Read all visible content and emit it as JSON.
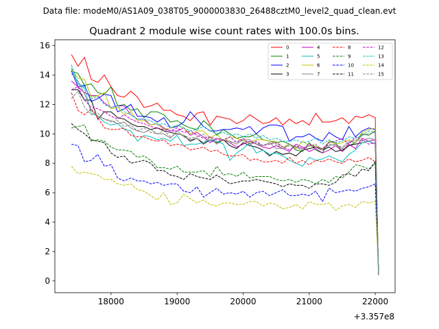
{
  "chart_data": {
    "type": "line",
    "suptitle": "Data file: modeM0/AS1A09_038T05_9000003830_26488cztM0_level2_quad_clean.evt",
    "title": "Quadrant 2 module wise count rates with 100.0s bins.",
    "xlabel": "",
    "ylabel": "",
    "offset_text": "+3.357e8",
    "xlim": [
      17150,
      22300
    ],
    "ylim": [
      -0.8,
      16.4
    ],
    "xticks": [
      18000,
      19000,
      20000,
      21000,
      22000
    ],
    "xtick_labels": [
      "18000",
      "19000",
      "20000",
      "21000",
      "22000"
    ],
    "yticks": [
      0,
      2,
      4,
      6,
      8,
      10,
      12,
      14,
      16
    ],
    "ytick_labels": [
      "0",
      "2",
      "4",
      "6",
      "8",
      "10",
      "12",
      "14",
      "16"
    ],
    "legend_position": "upper right",
    "x": [
      17400,
      17500,
      17600,
      17700,
      17800,
      17900,
      18000,
      18100,
      18200,
      18300,
      18400,
      18500,
      18600,
      18700,
      18800,
      18900,
      19000,
      19100,
      19200,
      19300,
      19400,
      19500,
      19600,
      19700,
      19800,
      19900,
      20000,
      20100,
      20200,
      20300,
      20400,
      20500,
      20600,
      20700,
      20800,
      20900,
      21000,
      21100,
      21200,
      21300,
      21400,
      21500,
      21600,
      21700,
      21800,
      21900,
      22000,
      22050
    ],
    "series": [
      {
        "name": "0",
        "color": "#ff0000",
        "dash": "solid",
        "values": [
          15.4,
          14.6,
          15.2,
          13.7,
          13.5,
          14.0,
          13.2,
          12.6,
          12.5,
          12.9,
          12.5,
          11.8,
          11.9,
          12.1,
          11.6,
          11.6,
          11.3,
          11.2,
          10.9,
          11.4,
          11.5,
          10.6,
          11.2,
          11.1,
          11.0,
          10.7,
          10.9,
          11.3,
          11.0,
          10.7,
          10.8,
          11.1,
          10.6,
          11.0,
          10.7,
          10.9,
          10.6,
          11.4,
          10.8,
          10.8,
          10.9,
          11.1,
          10.7,
          11.2,
          11.1,
          11.3,
          11.1,
          0.4
        ]
      },
      {
        "name": "1",
        "color": "#008000",
        "dash": "solid",
        "values": [
          14.3,
          14.1,
          13.3,
          13.4,
          12.8,
          12.7,
          13.2,
          11.9,
          12.0,
          11.6,
          11.7,
          11.1,
          11.5,
          11.5,
          11.3,
          10.8,
          10.9,
          10.6,
          10.4,
          10.3,
          10.9,
          10.5,
          9.9,
          10.3,
          10.0,
          9.7,
          9.8,
          9.8,
          10.0,
          9.6,
          9.5,
          9.4,
          9.5,
          9.3,
          8.9,
          8.8,
          9.4,
          8.9,
          8.7,
          9.5,
          9.4,
          8.8,
          9.2,
          9.4,
          10.0,
          9.9,
          10.2,
          0.5
        ]
      },
      {
        "name": "2",
        "color": "#0000ff",
        "dash": "solid",
        "values": [
          14.3,
          13.2,
          13.3,
          12.2,
          12.4,
          12.7,
          12.6,
          11.5,
          11.7,
          12.0,
          11.2,
          11.2,
          11.1,
          10.8,
          11.1,
          10.4,
          10.5,
          10.8,
          11.5,
          11.0,
          10.5,
          10.2,
          10.2,
          10.3,
          10.3,
          10.4,
          10.3,
          10.5,
          10.0,
          10.4,
          10.6,
          10.6,
          10.5,
          9.5,
          9.8,
          9.8,
          10.0,
          9.7,
          9.5,
          10.1,
          9.8,
          9.6,
          10.5,
          9.8,
          10.2,
          10.4,
          10.3,
          0.4
        ]
      },
      {
        "name": "3",
        "color": "#000000",
        "dash": "solid",
        "values": [
          13.0,
          13.0,
          12.3,
          12.3,
          11.0,
          11.5,
          11.5,
          11.1,
          11.0,
          10.7,
          10.5,
          10.5,
          10.3,
          10.4,
          10.2,
          10.1,
          10.0,
          9.9,
          9.5,
          9.7,
          9.3,
          9.6,
          9.4,
          9.6,
          9.2,
          9.0,
          9.4,
          9.2,
          9.1,
          8.9,
          8.5,
          8.8,
          8.6,
          8.7,
          8.5,
          8.9,
          9.0,
          9.1,
          8.9,
          9.1,
          8.8,
          8.9,
          9.2,
          9.3,
          9.4,
          9.5,
          9.3,
          0.4
        ]
      },
      {
        "name": "4",
        "color": "#bf00bf",
        "dash": "solid",
        "values": [
          13.6,
          13.2,
          12.8,
          12.6,
          12.6,
          12.1,
          11.8,
          11.9,
          11.9,
          11.3,
          11.0,
          11.0,
          10.6,
          10.7,
          10.4,
          10.2,
          10.2,
          10.4,
          9.9,
          10.1,
          9.8,
          9.4,
          9.7,
          9.6,
          9.4,
          9.1,
          9.3,
          9.5,
          9.3,
          9.1,
          9.0,
          9.2,
          9.0,
          8.8,
          9.3,
          9.1,
          8.8,
          9.0,
          8.7,
          8.9,
          9.2,
          8.8,
          9.3,
          9.0,
          9.7,
          9.5,
          9.6,
          0.4
        ]
      },
      {
        "name": "5",
        "color": "#00bfbf",
        "dash": "solid",
        "values": [
          14.5,
          13.4,
          13.1,
          11.4,
          11.2,
          10.8,
          10.6,
          10.7,
          10.3,
          10.2,
          9.5,
          9.9,
          9.8,
          9.6,
          9.7,
          9.5,
          9.9,
          9.2,
          9.3,
          9.3,
          9.4,
          9.6,
          9.5,
          9.3,
          8.2,
          8.7,
          9.0,
          9.4,
          8.7,
          8.9,
          8.6,
          8.7,
          8.5,
          8.2,
          8.0,
          7.8,
          8.4,
          8.2,
          8.3,
          8.5,
          8.3,
          8.1,
          8.6,
          8.9,
          9.4,
          9.5,
          9.3,
          0.4
        ]
      },
      {
        "name": "6",
        "color": "#bfbf00",
        "dash": "solid",
        "values": [
          14.4,
          13.8,
          13.7,
          12.5,
          12.6,
          12.8,
          11.7,
          11.8,
          11.3,
          11.5,
          10.9,
          10.9,
          10.6,
          10.7,
          10.3,
          10.4,
          10.6,
          10.4,
          10.0,
          10.2,
          10.2,
          9.7,
          10.0,
          9.5,
          9.8,
          9.7,
          9.5,
          9.4,
          9.6,
          9.6,
          9.5,
          9.5,
          9.1,
          9.3,
          9.0,
          9.5,
          9.2,
          9.2,
          8.9,
          9.5,
          9.3,
          9.4,
          9.6,
          9.4,
          10.1,
          10.3,
          10.4,
          0.4
        ]
      },
      {
        "name": "7",
        "color": "#808080",
        "dash": "solid",
        "values": [
          14.1,
          13.6,
          12.7,
          11.6,
          11.2,
          11.0,
          10.9,
          10.7,
          10.8,
          10.4,
          10.2,
          10.1,
          10.3,
          10.0,
          10.0,
          9.7,
          10.2,
          9.8,
          9.6,
          9.7,
          9.4,
          9.8,
          9.3,
          9.6,
          9.5,
          9.3,
          9.6,
          9.6,
          9.3,
          9.2,
          9.4,
          9.0,
          9.0,
          9.3,
          9.1,
          8.9,
          9.2,
          9.1,
          9.0,
          9.2,
          9.3,
          9.0,
          9.4,
          9.6,
          9.5,
          9.7,
          9.6,
          0.4
        ]
      },
      {
        "name": "8",
        "color": "#ff0000",
        "dash": "dashed",
        "values": [
          12.8,
          11.6,
          11.3,
          11.7,
          11.1,
          10.4,
          10.3,
          10.3,
          10.4,
          9.9,
          9.8,
          9.8,
          9.6,
          9.5,
          9.6,
          9.2,
          9.3,
          9.2,
          8.9,
          9.0,
          9.1,
          8.8,
          8.9,
          8.6,
          8.5,
          8.5,
          8.6,
          8.2,
          8.3,
          8.1,
          8.1,
          8.2,
          8.0,
          8.4,
          8.0,
          8.2,
          7.9,
          8.2,
          8.1,
          8.3,
          8.1,
          8.0,
          8.3,
          8.1,
          8.2,
          8.4,
          8.1,
          0.4
        ]
      },
      {
        "name": "9",
        "color": "#008000",
        "dash": "dashed",
        "values": [
          10.4,
          10.5,
          10.6,
          9.5,
          9.6,
          9.5,
          9.1,
          8.9,
          8.9,
          8.8,
          8.4,
          8.5,
          8.2,
          7.7,
          7.7,
          7.6,
          7.8,
          7.4,
          7.4,
          7.4,
          7.5,
          7.1,
          7.8,
          7.2,
          7.3,
          7.1,
          7.4,
          7.0,
          7.1,
          7.1,
          7.1,
          6.9,
          6.8,
          6.9,
          6.7,
          6.9,
          6.8,
          6.6,
          6.9,
          6.7,
          7.1,
          7.0,
          7.4,
          7.9,
          7.8,
          7.6,
          8.0,
          0.4
        ]
      },
      {
        "name": "10",
        "color": "#0000ff",
        "dash": "dashed",
        "values": [
          9.3,
          9.2,
          8.1,
          8.2,
          8.6,
          7.8,
          7.9,
          7.0,
          6.8,
          7.0,
          6.8,
          6.8,
          6.6,
          6.7,
          6.5,
          6.6,
          6.6,
          6.1,
          6.0,
          6.4,
          5.7,
          6.0,
          6.3,
          5.9,
          6.0,
          5.9,
          6.1,
          5.7,
          6.0,
          6.1,
          5.8,
          6.0,
          6.2,
          5.8,
          5.8,
          5.9,
          5.8,
          6.1,
          5.4,
          6.3,
          6.0,
          6.1,
          6.2,
          6.1,
          6.3,
          6.4,
          6.6,
          0.4
        ]
      },
      {
        "name": "11",
        "color": "#000000",
        "dash": "dashed",
        "values": [
          10.7,
          10.3,
          10.0,
          9.6,
          9.5,
          9.4,
          8.7,
          8.4,
          8.5,
          8.0,
          8.1,
          8.2,
          8.0,
          7.5,
          7.5,
          7.2,
          7.1,
          6.9,
          7.3,
          7.1,
          7.0,
          6.9,
          7.2,
          6.9,
          6.6,
          6.7,
          6.8,
          6.8,
          6.9,
          6.8,
          6.7,
          6.6,
          6.4,
          6.6,
          6.5,
          6.5,
          6.3,
          6.6,
          6.6,
          6.5,
          6.7,
          7.2,
          7.3,
          7.1,
          7.6,
          7.5,
          8.1,
          0.4
        ]
      },
      {
        "name": "12",
        "color": "#bf00bf",
        "dash": "dashed",
        "values": [
          13.0,
          13.2,
          12.3,
          11.8,
          11.7,
          11.5,
          11.2,
          11.0,
          11.3,
          11.0,
          10.8,
          10.7,
          10.5,
          10.4,
          10.3,
          10.2,
          10.4,
          10.1,
          10.2,
          9.9,
          9.7,
          9.8,
          9.6,
          9.6,
          9.8,
          9.4,
          9.7,
          9.3,
          9.5,
          9.2,
          9.3,
          9.4,
          9.1,
          8.9,
          9.2,
          9.0,
          9.3,
          9.1,
          9.0,
          9.4,
          9.5,
          9.7,
          9.3,
          9.8,
          9.6,
          9.3,
          9.4,
          0.4
        ]
      },
      {
        "name": "13",
        "color": "#00bfbf",
        "dash": "dashed",
        "values": [
          14.7,
          13.4,
          13.2,
          12.4,
          12.5,
          12.0,
          11.8,
          11.9,
          11.5,
          11.3,
          11.0,
          11.0,
          10.9,
          10.6,
          10.7,
          10.4,
          10.6,
          10.4,
          10.2,
          10.3,
          10.5,
          10.2,
          10.0,
          10.1,
          9.9,
          10.0,
          9.8,
          10.0,
          9.7,
          9.9,
          9.6,
          9.7,
          9.5,
          9.5,
          9.6,
          9.4,
          9.5,
          9.7,
          9.3,
          9.6,
          9.4,
          9.5,
          9.8,
          9.7,
          9.9,
          10.2,
          10.1,
          0.4
        ]
      },
      {
        "name": "14",
        "color": "#bfbf00",
        "dash": "dashed",
        "values": [
          7.8,
          7.3,
          7.4,
          7.3,
          7.2,
          6.9,
          6.9,
          6.6,
          6.5,
          6.6,
          6.2,
          6.1,
          5.8,
          5.5,
          6.0,
          5.2,
          5.3,
          5.9,
          5.6,
          5.3,
          5.5,
          5.2,
          5.1,
          5.3,
          5.3,
          5.2,
          5.2,
          5.4,
          5.4,
          5.1,
          5.3,
          5.2,
          4.9,
          5.0,
          5.2,
          4.9,
          5.4,
          5.2,
          5.2,
          5.3,
          4.8,
          5.1,
          5.2,
          5.0,
          5.4,
          5.3,
          5.4,
          0.4
        ]
      },
      {
        "name": "15",
        "color": "#808080",
        "dash": "dashed",
        "values": [
          12.4,
          12.9,
          11.8,
          11.3,
          11.4,
          11.0,
          10.8,
          10.9,
          10.5,
          10.6,
          10.2,
          10.4,
          10.1,
          10.0,
          10.2,
          9.8,
          10.0,
          9.9,
          9.7,
          9.8,
          10.0,
          9.5,
          9.7,
          9.6,
          9.4,
          9.5,
          9.6,
          9.3,
          9.4,
          9.2,
          9.4,
          9.3,
          9.0,
          9.2,
          9.1,
          9.0,
          9.2,
          9.3,
          8.9,
          9.3,
          9.2,
          9.1,
          9.5,
          9.4,
          9.9,
          10.0,
          10.1,
          0.4
        ]
      }
    ]
  }
}
